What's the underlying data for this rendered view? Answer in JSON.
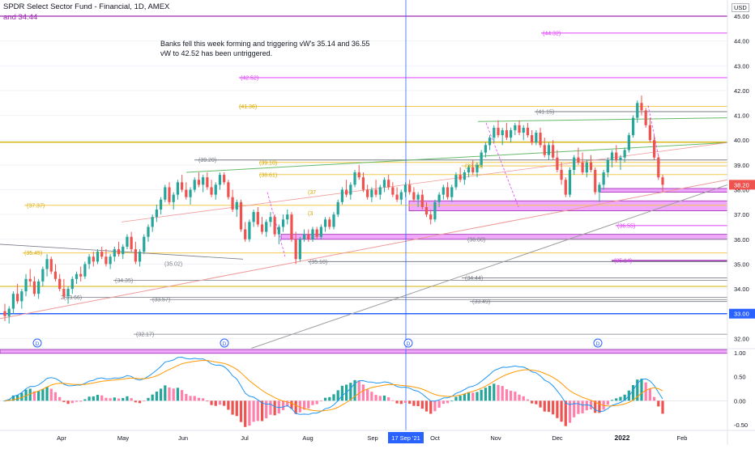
{
  "header": {
    "title": "SPDR Select Sector Fund - Financial, 1D, AMEX",
    "subtitle": "and 34.44",
    "currency": "USD"
  },
  "annotation": {
    "line1": "Banks fell this week forming and triggering vW's 35.14 and 36.55",
    "line2": "vW to 42.52 has been untriggered."
  },
  "colors": {
    "bull": "#26a69a",
    "bear": "#ef5350",
    "magenta": "#e040fb",
    "purple": "#9c27b0",
    "yellow": "#f2c94c",
    "gray": "#787b86",
    "blue": "#2962ff",
    "green": "#4caf50",
    "macd": "#2196f3",
    "signal": "#ff9800",
    "histUp": "#26a69a",
    "histDown": "#ef5350",
    "histUpLight": "#b2dfdb",
    "histDownLight": "#ffcdd2",
    "pink": "#ff80ab"
  },
  "chart_data": {
    "type": "candlestick",
    "title": "SPDR Select Sector Fund - Financial, 1D, AMEX",
    "price_axis": {
      "ticks": [
        "45.00",
        "44.00",
        "43.00",
        "42.00",
        "41.00",
        "40.00",
        "39.00",
        "38.00",
        "37.00",
        "36.00",
        "35.00",
        "34.00",
        "33.00",
        "32.00"
      ],
      "range": [
        31.6,
        45.1
      ],
      "last_price": "38.20",
      "last_price_color": "#ef5350",
      "marked_level": "33.00"
    },
    "time_axis": {
      "labels": [
        "Apr",
        "May",
        "Jun",
        "Jul",
        "Aug",
        "Sep",
        "17 Sep '21",
        "Oct",
        "Nov",
        "Dec",
        "2022",
        "Feb"
      ],
      "highlighted": "17 Sep '21"
    },
    "macd_axis": {
      "ticks": [
        "1.00",
        "0.50",
        "0.00",
        "-0.50"
      ],
      "range": [
        -0.55,
        1.05
      ]
    },
    "level_labels": {
      "l4432": "(44.32)",
      "l4252": "(42.52)",
      "l4136": "(41.36)",
      "l4115": "(41.15)",
      "l3920": "(39.20)",
      "l3910": "(39.10)",
      "l3896": "(38.96)",
      "l3861": "(38.61)",
      "l3737": "(37.37)",
      "l37x": "(37",
      "l3x": "(3",
      "l3655": "(36.55)",
      "l3600": "(36.00)",
      "l3545": "(35.45)",
      "l3514": "(35.14)",
      "l3510": "(35.10)",
      "l3502": "(35.02)",
      "l3444": "(34.44)",
      "l3435": "(34.35)",
      "l3366": "2(33.66)",
      "l3357": "(33.57)",
      "l3349": "(33.49)",
      "l3217": "(32.17)"
    },
    "dividend_marker": "D",
    "series": [
      {
        "name": "XLF daily",
        "candles": [
          [
            33.1,
            33.4,
            32.7,
            32.9
          ],
          [
            32.9,
            33.3,
            32.6,
            33.2
          ],
          [
            33.2,
            33.9,
            33.0,
            33.8
          ],
          [
            33.8,
            34.2,
            33.4,
            33.5
          ],
          [
            33.5,
            34.0,
            33.2,
            33.9
          ],
          [
            33.9,
            34.6,
            33.7,
            34.4
          ],
          [
            34.4,
            34.8,
            34.1,
            34.3
          ],
          [
            34.3,
            34.5,
            33.7,
            33.8
          ],
          [
            33.8,
            34.4,
            33.6,
            34.3
          ],
          [
            34.3,
            34.9,
            34.1,
            34.8
          ],
          [
            34.8,
            35.4,
            34.5,
            35.2
          ],
          [
            35.2,
            35.3,
            34.6,
            34.7
          ],
          [
            34.7,
            35.0,
            34.3,
            34.4
          ],
          [
            34.4,
            34.6,
            33.9,
            34.0
          ],
          [
            34.0,
            34.4,
            33.6,
            33.7
          ],
          [
            33.7,
            34.1,
            33.4,
            34.0
          ],
          [
            34.0,
            34.5,
            33.8,
            34.4
          ],
          [
            34.4,
            34.7,
            34.2,
            34.6
          ],
          [
            34.6,
            34.9,
            34.3,
            34.5
          ],
          [
            34.5,
            35.1,
            34.4,
            35.0
          ],
          [
            35.0,
            35.4,
            34.8,
            35.3
          ],
          [
            35.3,
            35.5,
            34.9,
            35.1
          ],
          [
            35.1,
            35.6,
            35.0,
            35.5
          ],
          [
            35.5,
            35.7,
            35.2,
            35.3
          ],
          [
            35.3,
            35.6,
            34.9,
            35.0
          ],
          [
            35.0,
            35.4,
            34.8,
            35.3
          ],
          [
            35.3,
            35.7,
            35.1,
            35.6
          ],
          [
            35.6,
            35.9,
            35.3,
            35.4
          ],
          [
            35.4,
            35.8,
            35.2,
            35.7
          ],
          [
            35.7,
            36.2,
            35.6,
            36.1
          ],
          [
            36.1,
            36.3,
            35.5,
            35.6
          ],
          [
            35.6,
            35.9,
            35.0,
            35.1
          ],
          [
            35.1,
            35.6,
            34.9,
            35.5
          ],
          [
            35.5,
            36.2,
            35.4,
            36.1
          ],
          [
            36.1,
            36.6,
            35.9,
            36.5
          ],
          [
            36.5,
            37.0,
            36.3,
            36.9
          ],
          [
            36.9,
            37.4,
            36.7,
            37.2
          ],
          [
            37.2,
            37.7,
            37.0,
            37.6
          ],
          [
            37.6,
            38.2,
            37.5,
            38.1
          ],
          [
            38.1,
            38.3,
            37.4,
            37.5
          ],
          [
            37.5,
            37.9,
            37.2,
            37.8
          ],
          [
            37.8,
            38.4,
            37.6,
            38.3
          ],
          [
            38.3,
            38.6,
            37.9,
            38.0
          ],
          [
            38.0,
            38.3,
            37.6,
            37.7
          ],
          [
            37.7,
            38.1,
            37.4,
            38.0
          ],
          [
            38.0,
            38.5,
            37.9,
            38.4
          ],
          [
            38.4,
            38.7,
            38.1,
            38.2
          ],
          [
            38.2,
            38.6,
            37.9,
            38.5
          ],
          [
            38.5,
            38.7,
            38.0,
            38.1
          ],
          [
            38.1,
            38.4,
            37.7,
            37.8
          ],
          [
            37.8,
            38.3,
            37.6,
            38.2
          ],
          [
            38.2,
            38.7,
            38.0,
            38.6
          ],
          [
            38.6,
            38.7,
            38.2,
            38.3
          ],
          [
            38.3,
            38.4,
            37.6,
            37.7
          ],
          [
            37.7,
            38.0,
            37.1,
            37.2
          ],
          [
            37.2,
            37.6,
            36.9,
            37.5
          ],
          [
            37.5,
            37.6,
            36.3,
            36.4
          ],
          [
            36.4,
            36.7,
            35.9,
            36.0
          ],
          [
            36.0,
            36.8,
            35.9,
            36.7
          ],
          [
            36.7,
            37.2,
            36.5,
            37.1
          ],
          [
            37.1,
            37.3,
            36.5,
            36.6
          ],
          [
            36.6,
            36.9,
            36.2,
            36.3
          ],
          [
            36.3,
            36.8,
            36.1,
            36.7
          ],
          [
            36.7,
            37.1,
            36.5,
            36.9
          ],
          [
            36.9,
            37.0,
            36.1,
            36.2
          ],
          [
            36.2,
            36.6,
            35.8,
            36.5
          ],
          [
            36.5,
            37.0,
            36.3,
            36.8
          ],
          [
            36.8,
            37.2,
            36.6,
            37.0
          ],
          [
            37.0,
            37.1,
            35.9,
            36.0
          ],
          [
            36.0,
            36.3,
            35.0,
            35.2
          ],
          [
            35.2,
            36.1,
            35.1,
            36.0
          ],
          [
            36.0,
            36.4,
            35.9,
            36.2
          ],
          [
            36.2,
            36.4,
            35.9,
            36.0
          ],
          [
            36.0,
            36.5,
            35.9,
            36.4
          ],
          [
            36.4,
            36.5,
            36.0,
            36.1
          ],
          [
            36.1,
            36.6,
            36.0,
            36.5
          ],
          [
            36.5,
            36.9,
            36.3,
            36.8
          ],
          [
            36.8,
            36.9,
            36.4,
            36.5
          ],
          [
            36.5,
            37.1,
            36.4,
            37.0
          ],
          [
            37.0,
            37.6,
            36.9,
            37.5
          ],
          [
            37.5,
            38.1,
            37.4,
            38.0
          ],
          [
            38.0,
            38.4,
            37.7,
            37.8
          ],
          [
            37.8,
            38.3,
            37.6,
            38.2
          ],
          [
            38.2,
            38.8,
            38.1,
            38.7
          ],
          [
            38.7,
            39.0,
            38.4,
            38.5
          ],
          [
            38.5,
            38.7,
            37.9,
            38.0
          ],
          [
            38.0,
            38.2,
            37.6,
            37.7
          ],
          [
            37.7,
            38.1,
            37.5,
            38.0
          ],
          [
            38.0,
            38.4,
            37.7,
            37.8
          ],
          [
            37.8,
            38.2,
            37.6,
            38.1
          ],
          [
            38.1,
            38.5,
            37.9,
            38.4
          ],
          [
            38.4,
            38.6,
            38.0,
            38.1
          ],
          [
            38.1,
            38.3,
            37.7,
            37.8
          ],
          [
            37.8,
            38.1,
            37.5,
            37.6
          ],
          [
            37.6,
            38.0,
            37.4,
            37.9
          ],
          [
            37.9,
            38.3,
            37.7,
            38.2
          ],
          [
            38.2,
            38.4,
            37.8,
            37.9
          ],
          [
            37.9,
            38.1,
            37.5,
            37.6
          ],
          [
            37.6,
            37.9,
            37.3,
            37.8
          ],
          [
            37.8,
            38.0,
            37.2,
            37.3
          ],
          [
            37.3,
            37.5,
            36.9,
            37.0
          ],
          [
            37.0,
            37.2,
            36.6,
            36.8
          ],
          [
            36.8,
            37.6,
            36.7,
            37.5
          ],
          [
            37.5,
            37.9,
            37.3,
            37.8
          ],
          [
            37.8,
            38.2,
            37.6,
            38.1
          ],
          [
            38.1,
            38.3,
            37.6,
            37.7
          ],
          [
            37.7,
            38.2,
            37.5,
            38.1
          ],
          [
            38.1,
            38.7,
            38.0,
            38.6
          ],
          [
            38.6,
            38.9,
            38.3,
            38.4
          ],
          [
            38.4,
            38.8,
            38.2,
            38.7
          ],
          [
            38.7,
            39.0,
            38.5,
            38.9
          ],
          [
            38.9,
            39.2,
            38.6,
            38.7
          ],
          [
            38.7,
            39.1,
            38.5,
            39.0
          ],
          [
            39.0,
            39.6,
            38.9,
            39.5
          ],
          [
            39.5,
            39.9,
            39.3,
            39.8
          ],
          [
            39.8,
            40.2,
            39.6,
            40.1
          ],
          [
            40.1,
            40.6,
            39.9,
            40.5
          ],
          [
            40.5,
            40.8,
            40.1,
            40.2
          ],
          [
            40.2,
            40.5,
            39.8,
            40.4
          ],
          [
            40.4,
            40.7,
            40.0,
            40.1
          ],
          [
            40.1,
            40.5,
            39.9,
            40.4
          ],
          [
            40.4,
            40.7,
            40.2,
            40.6
          ],
          [
            40.6,
            40.8,
            40.2,
            40.3
          ],
          [
            40.3,
            40.6,
            40.0,
            40.5
          ],
          [
            40.5,
            40.7,
            40.1,
            40.2
          ],
          [
            40.2,
            40.4,
            39.8,
            39.9
          ],
          [
            39.9,
            40.4,
            39.8,
            40.3
          ],
          [
            40.3,
            40.5,
            39.7,
            39.8
          ],
          [
            39.8,
            40.1,
            39.3,
            39.4
          ],
          [
            39.4,
            39.9,
            39.2,
            39.8
          ],
          [
            39.8,
            40.0,
            39.2,
            39.3
          ],
          [
            39.3,
            39.6,
            38.7,
            38.8
          ],
          [
            38.8,
            39.1,
            38.2,
            38.4
          ],
          [
            38.4,
            38.5,
            37.7,
            37.8
          ],
          [
            37.8,
            38.9,
            37.7,
            38.8
          ],
          [
            38.8,
            39.4,
            38.6,
            39.3
          ],
          [
            39.3,
            39.7,
            39.0,
            39.1
          ],
          [
            39.1,
            39.5,
            38.6,
            38.7
          ],
          [
            38.7,
            39.2,
            38.5,
            39.1
          ],
          [
            39.1,
            39.4,
            38.7,
            38.8
          ],
          [
            38.8,
            38.9,
            37.8,
            37.9
          ],
          [
            37.9,
            38.3,
            37.5,
            38.2
          ],
          [
            38.2,
            38.8,
            38.0,
            38.7
          ],
          [
            38.7,
            39.3,
            38.5,
            39.2
          ],
          [
            39.2,
            39.6,
            38.9,
            39.5
          ],
          [
            39.5,
            39.8,
            39.1,
            39.2
          ],
          [
            39.2,
            39.4,
            38.8,
            39.3
          ],
          [
            39.3,
            39.7,
            39.1,
            39.6
          ],
          [
            39.6,
            40.3,
            39.5,
            40.2
          ],
          [
            40.2,
            41.0,
            40.1,
            40.9
          ],
          [
            40.9,
            41.6,
            40.7,
            41.5
          ],
          [
            41.5,
            41.8,
            41.0,
            41.2
          ],
          [
            41.2,
            41.3,
            40.5,
            40.6
          ],
          [
            40.6,
            40.9,
            39.9,
            40.0
          ],
          [
            40.0,
            40.2,
            39.2,
            39.3
          ],
          [
            39.3,
            39.4,
            38.4,
            38.5
          ],
          [
            38.5,
            38.6,
            37.9,
            38.2
          ]
        ]
      }
    ],
    "macd": {
      "type": "line",
      "note": "MACD (blue) and signal (orange) with histogram"
    }
  }
}
